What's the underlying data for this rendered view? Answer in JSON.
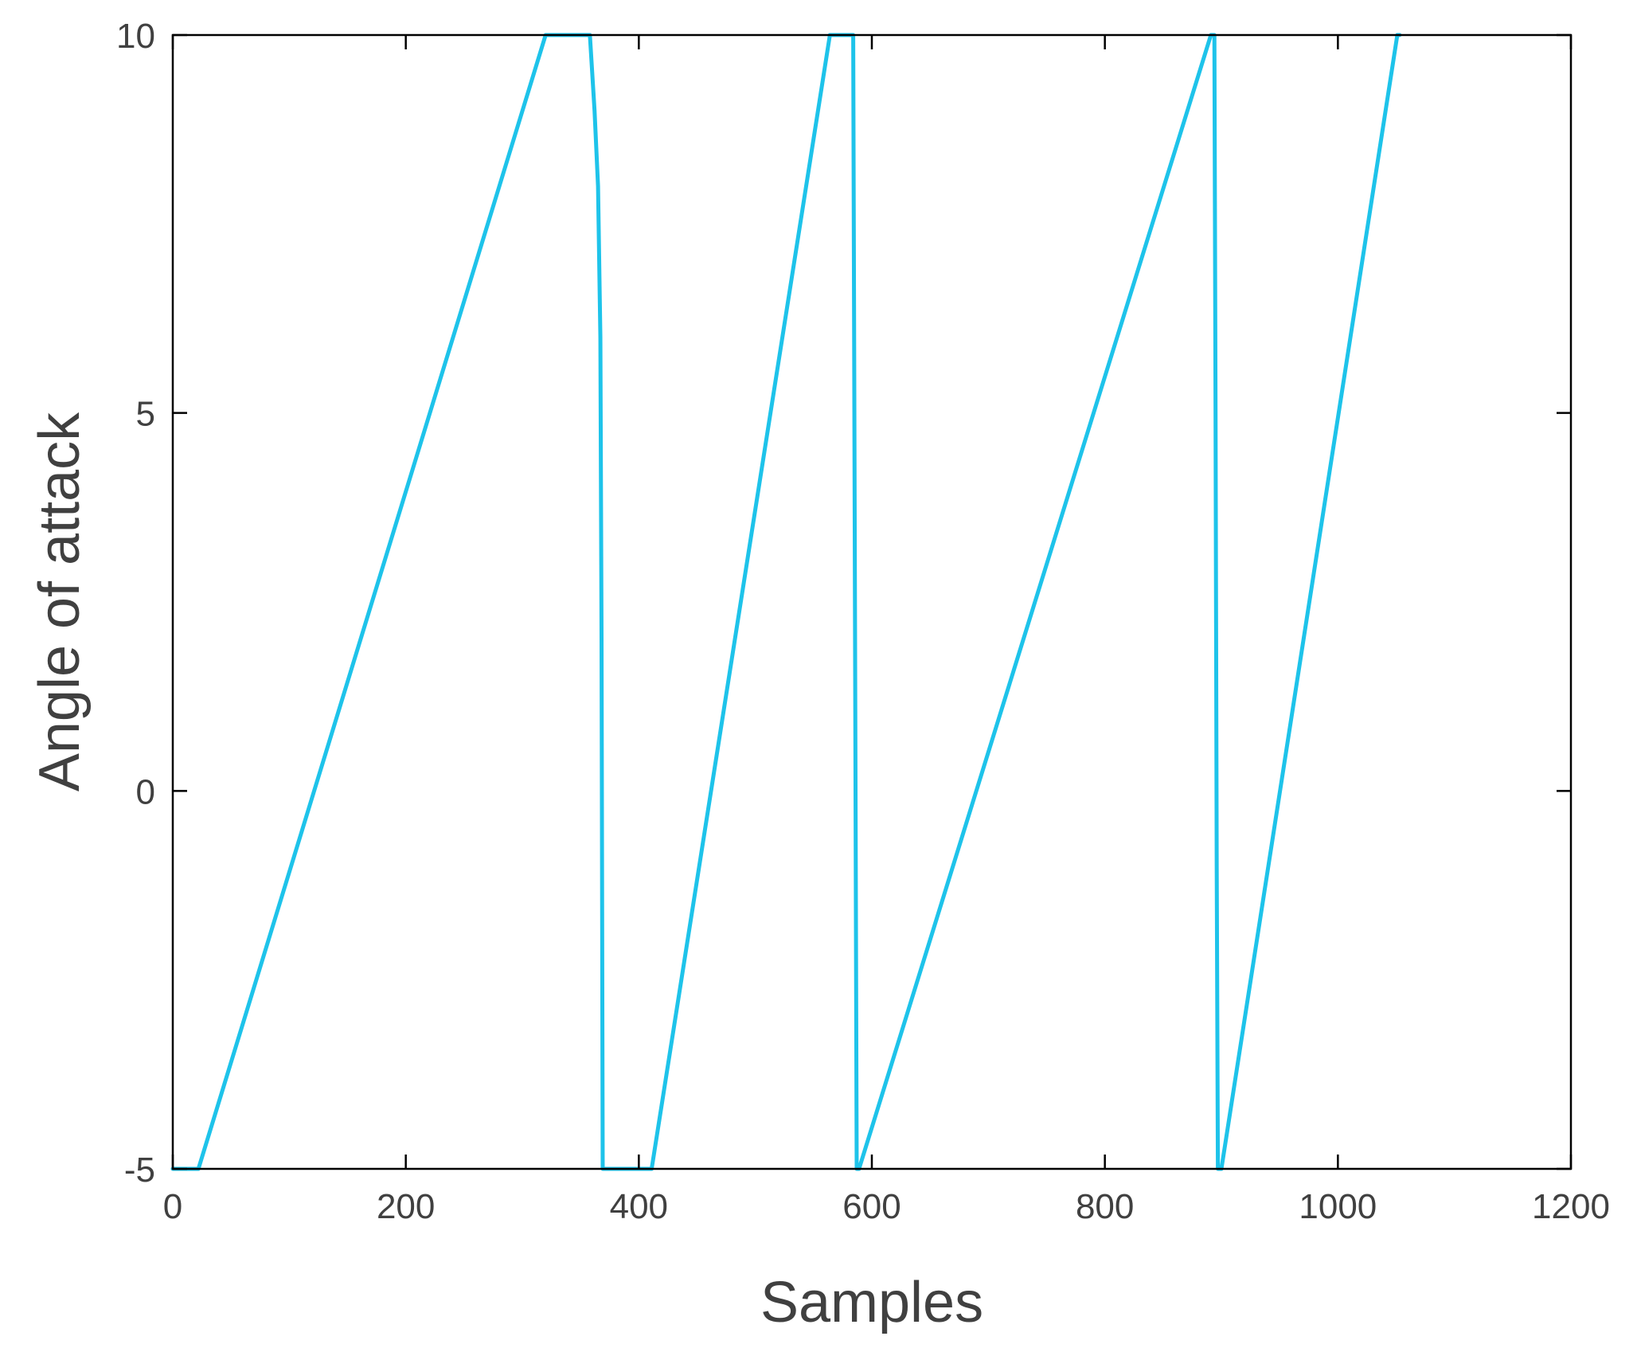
{
  "chart_data": {
    "type": "line",
    "title": "",
    "xlabel": "Samples",
    "ylabel": "Angle of attack",
    "xlim": [
      0,
      1200
    ],
    "ylim": [
      -5,
      10
    ],
    "xticks": [
      0,
      200,
      400,
      600,
      800,
      1000,
      1200
    ],
    "yticks": [
      -5,
      0,
      5,
      10
    ],
    "xtick_labels": [
      "0",
      "200",
      "400",
      "600",
      "800",
      "1000",
      "1200"
    ],
    "ytick_labels": [
      "-5",
      "0",
      "5",
      "10"
    ],
    "grid": false,
    "legend": "none",
    "series": [
      {
        "color": "#1ec3ea",
        "points": [
          [
            0,
            -5
          ],
          [
            22,
            -5
          ],
          [
            320,
            10
          ],
          [
            358,
            10
          ],
          [
            362,
            9
          ],
          [
            365,
            8
          ],
          [
            367,
            6
          ],
          [
            368,
            2
          ],
          [
            369,
            -5
          ],
          [
            411,
            -5
          ],
          [
            564,
            10
          ],
          [
            584,
            10
          ],
          [
            585,
            5
          ],
          [
            586,
            0
          ],
          [
            587,
            -5
          ],
          [
            589,
            -5
          ],
          [
            891,
            10
          ],
          [
            894,
            10
          ],
          [
            895,
            5
          ],
          [
            896,
            -1
          ],
          [
            897,
            -5
          ],
          [
            900,
            -5
          ],
          [
            1051,
            10
          ],
          [
            1053,
            10
          ]
        ]
      }
    ]
  }
}
